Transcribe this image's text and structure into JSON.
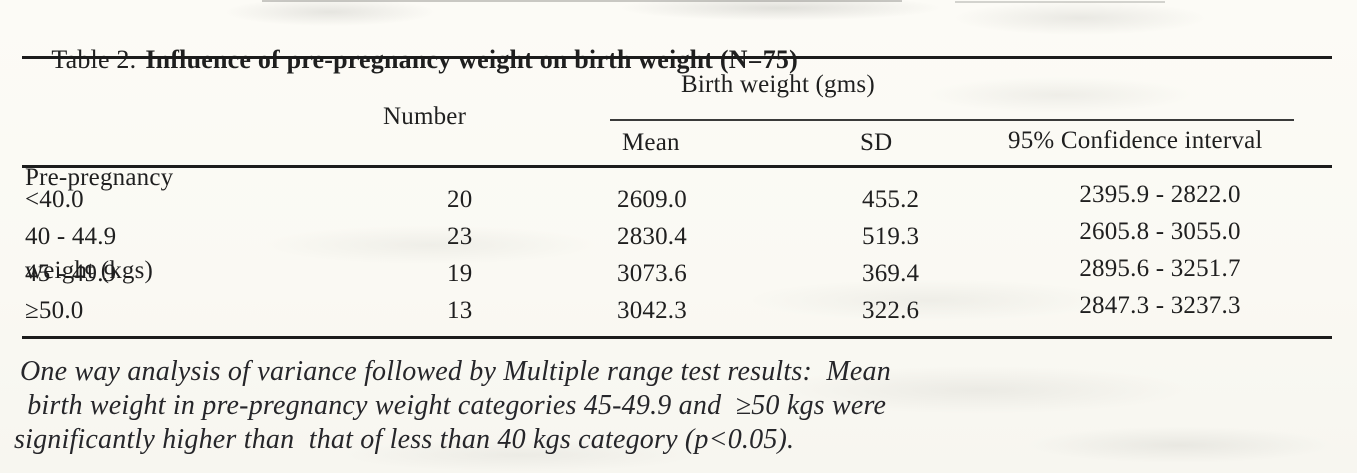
{
  "title": {
    "prefix": "Table 2.",
    "main": "Influence of pre-pregnancy weight on birth weight (N=75)"
  },
  "table": {
    "column1_header_lines": [
      "Pre-pregnancy",
      "weight (kgs)"
    ],
    "column2_header": "Number",
    "group_header": "Birth weight (gms)",
    "sub_headers": {
      "mean": "Mean",
      "sd": "SD",
      "ci": "95% Confidence interval"
    },
    "rows": [
      {
        "weight": "<40.0",
        "number": "20",
        "mean": "2609.0",
        "sd": "455.2",
        "ci": "2395.9 - 2822.0"
      },
      {
        "weight": "40 - 44.9",
        "number": "23",
        "mean": "2830.4",
        "sd": "519.3",
        "ci": "2605.8 - 3055.0"
      },
      {
        "weight": "45 - 49.9",
        "number": "19",
        "mean": "3073.6",
        "sd": "369.4",
        "ci": "2895.6 - 3251.7"
      },
      {
        "weight": "≥50.0",
        "number": "13",
        "mean": "3042.3",
        "sd": "322.6",
        "ci": "2847.3 - 3237.3"
      }
    ]
  },
  "note": {
    "lines": [
      "One way analysis of variance followed by Multiple range test results:  Mean",
      " birth weight in pre-pregnancy weight categories 45-49.9 and  ≥50 kgs were",
      "significantly higher than  that of less than 40 kgs category (p<0.05)."
    ]
  },
  "colors": {
    "text": "#1f1f1f",
    "rule": "#1c1c1c",
    "paper": "#fbfaf5"
  },
  "chart_data": {
    "type": "table",
    "title": "Table 2. Influence of pre-pregnancy weight on birth weight (N=75)",
    "columns": [
      "Pre-pregnancy weight (kgs)",
      "Number",
      "Birth weight (gms) Mean",
      "Birth weight (gms) SD",
      "Birth weight (gms) 95% Confidence interval"
    ],
    "rows": [
      [
        "<40.0",
        20,
        2609.0,
        455.2,
        "2395.9 - 2822.0"
      ],
      [
        "40 - 44.9",
        23,
        2830.4,
        519.3,
        "2605.8 - 3055.0"
      ],
      [
        "45 - 49.9",
        19,
        3073.6,
        369.4,
        "2895.6 - 3251.7"
      ],
      [
        "≥50.0",
        13,
        3042.3,
        322.6,
        "2847.3 - 3237.3"
      ]
    ],
    "footnote": "One way analysis of variance followed by Multiple range test results: Mean birth weight in pre-pregnancy weight categories 45-49.9 and ≥50 kgs were significantly higher than that of less than 40 kgs category (p<0.05)."
  }
}
